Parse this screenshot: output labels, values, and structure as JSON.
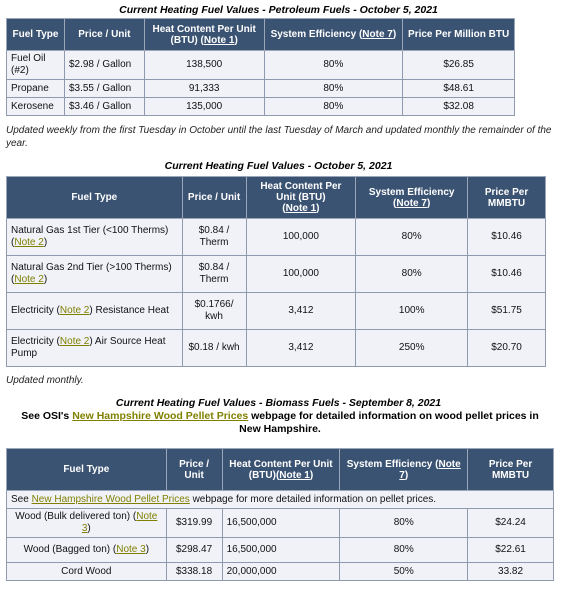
{
  "petroleum": {
    "caption": "Current Heating Fuel Values - Petroleum Fuels - October 5, 2021",
    "headers": {
      "fuel_type": "Fuel Type",
      "price_unit": "Price / Unit",
      "heat_content": "Heat Content Per Unit (BTU)",
      "heat_note": "Note 1",
      "system_eff": "System Efficiency",
      "eff_note": "Note 7",
      "price_million": "Price Per Million BTU"
    },
    "rows": [
      {
        "fuel": "Fuel Oil (#2)",
        "price": "$2.98 / Gallon",
        "heat": "138,500",
        "eff": "80%",
        "ppm": "$26.85"
      },
      {
        "fuel": "Propane",
        "price": "$3.55 / Gallon",
        "heat": "91,333",
        "eff": "80%",
        "ppm": "$48.61"
      },
      {
        "fuel": "Kerosene",
        "price": "$3.46 / Gallon",
        "heat": "135,000",
        "eff": "80%",
        "ppm": "$32.08"
      }
    ],
    "note": "Updated weekly from the first Tuesday in October until the last Tuesday of March and updated monthly the remainder of the year."
  },
  "general": {
    "caption": "Current Heating Fuel Values - October 5, 2021",
    "headers": {
      "fuel_type": "Fuel Type",
      "price_unit": "Price / Unit",
      "heat_content": "Heat Content Per Unit (BTU)",
      "heat_note": "Note 1",
      "system_eff": "System Efficiency",
      "eff_note": "Note 7",
      "price_mmbtu": "Price Per MMBTU"
    },
    "rows": [
      {
        "fuel_pre": "Natural Gas 1st Tier (<100 Therms) (",
        "fuel_note": "Note 2",
        "fuel_post": ")",
        "price": "$0.84 / Therm",
        "heat": "100,000",
        "eff": "80%",
        "ppm": "$10.46"
      },
      {
        "fuel_pre": "Natural Gas 2nd Tier (>100 Therms) (",
        "fuel_note": "Note 2",
        "fuel_post": ")",
        "price": "$0.84 / Therm",
        "heat": "100,000",
        "eff": "80%",
        "ppm": "$10.46"
      },
      {
        "fuel_pre": "Electricity (",
        "fuel_note": "Note 2",
        "fuel_post": ") Resistance Heat",
        "price": "$0.1766/ kwh",
        "heat": "3,412",
        "eff": "100%",
        "ppm": "$51.75"
      },
      {
        "fuel_pre": "Electricity (",
        "fuel_note": "Note 2",
        "fuel_post": ") Air Source Heat Pump",
        "price": "$0.18 / kwh",
        "heat": "3,412",
        "eff": "250%",
        "ppm": "$20.70"
      }
    ],
    "note": "Updated monthly."
  },
  "biomass": {
    "caption": "Current Heating Fuel Values - Biomass Fuels - September 8, 2021",
    "sub_pre": "See OSI's ",
    "sub_link": "New Hampshire Wood Pellet Prices",
    "sub_post": " webpage for detailed information on wood pellet prices in New Hampshire.",
    "headers": {
      "fuel_type": "Fuel Type",
      "price_unit": "Price / Unit",
      "heat_content": "Heat Content Per Unit (BTU)(",
      "heat_note": "Note 1",
      "heat_close": ")",
      "system_eff": "System Efficiency (",
      "eff_note": "Note 7",
      "eff_close": ")",
      "price_mmbtu": "Price Per MMBTU"
    },
    "info_pre": "See ",
    "info_link": "New Hampshire Wood Pellet Prices",
    "info_post": " webpage for more detailed information on pellet prices.",
    "rows": [
      {
        "fuel_pre": "Wood (Bulk delivered ton) (",
        "fuel_note": "Note 3",
        "fuel_post": ")",
        "price": "$319.99",
        "heat": "16,500,000",
        "eff": "80%",
        "ppm": "$24.24"
      },
      {
        "fuel_pre": "Wood (Bagged ton) (",
        "fuel_note": "Note 3",
        "fuel_post": ")",
        "price": "$298.47",
        "heat": "16,500,000",
        "eff": "80%",
        "ppm": "$22.61"
      },
      {
        "fuel_pre": "Cord Wood",
        "fuel_note": "",
        "fuel_post": "",
        "price": "$338.18",
        "heat": "20,000,000",
        "eff": "50%",
        "ppm": "33.82"
      }
    ]
  }
}
